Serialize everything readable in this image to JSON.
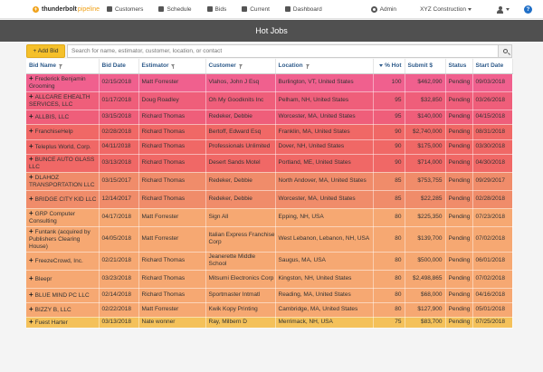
{
  "brand": {
    "name": "thunderbolt",
    "sub": "pipeline"
  },
  "nav": {
    "items": [
      {
        "label": "Customers",
        "icon": "people-icon"
      },
      {
        "label": "Schedule",
        "icon": "calendar-icon"
      },
      {
        "label": "Bids",
        "icon": "bids-icon"
      },
      {
        "label": "Current",
        "icon": "current-icon"
      },
      {
        "label": "Dashboard",
        "icon": "dashboard-icon"
      }
    ],
    "admin_label": "Admin",
    "company_label": "XYZ Construction",
    "help_label": "?"
  },
  "page_title": "Hot Jobs",
  "toolbar": {
    "add_label": "+ Add Bid",
    "search_placeholder": "Search for name, estimator, customer, location, or contact"
  },
  "columns": [
    "Bid Name",
    "Bid Date",
    "Estimator",
    "Customer",
    "Location",
    "% Hot",
    "Submit $",
    "Status",
    "Start Date"
  ],
  "colors": {
    "hot_100": "#f0608e",
    "hot_95": "#ef5e7a",
    "hot_90": "#f06866",
    "hot_85": "#f08c6a",
    "hot_80": "#f6a872",
    "hot_75": "#f4c15a"
  },
  "rows": [
    {
      "name": "Frederick Benjamin Grooming",
      "bid_date": "02/15/2018",
      "estimator": "Matt Forrester",
      "customer": "Vlahos, John J Esq",
      "location": "Burlington, VT, United States",
      "hot": "100",
      "submit": "$462,090",
      "status": "Pending",
      "start": "09/03/2018"
    },
    {
      "name": "ALLCARE EHEALTH SERVICES, LLC",
      "bid_date": "01/17/2018",
      "estimator": "Doug Roadley",
      "customer": "Oh My Goodknits Inc",
      "location": "Pelham, NH, United States",
      "hot": "95",
      "submit": "$32,850",
      "status": "Pending",
      "start": "03/26/2018"
    },
    {
      "name": "ALLBIS, LLC",
      "bid_date": "03/15/2018",
      "estimator": "Richard Thomas",
      "customer": "Redeker, Debbie",
      "location": "Worcester, MA, United States",
      "hot": "95",
      "submit": "$140,000",
      "status": "Pending",
      "start": "04/15/2018"
    },
    {
      "name": "FranchiseHelp",
      "bid_date": "02/28/2018",
      "estimator": "Richard Thomas",
      "customer": "Bertoff, Edward Esq",
      "location": "Franklin, MA, United States",
      "hot": "90",
      "submit": "$2,740,000",
      "status": "Pending",
      "start": "08/31/2018"
    },
    {
      "name": "Teleplus World, Corp.",
      "bid_date": "04/11/2018",
      "estimator": "Richard Thomas",
      "customer": "Professionals Unlimited",
      "location": "Dover, NH, United States",
      "hot": "90",
      "submit": "$175,000",
      "status": "Pending",
      "start": "03/30/2018"
    },
    {
      "name": "BUNCE AUTO GLASS LLC",
      "bid_date": "03/13/2018",
      "estimator": "Richard Thomas",
      "customer": "Desert Sands Motel",
      "location": "Portland, ME, United States",
      "hot": "90",
      "submit": "$714,000",
      "status": "Pending",
      "start": "04/30/2018"
    },
    {
      "name": "DLAHOZ TRANSPORTATION LLC",
      "bid_date": "03/15/2017",
      "estimator": "Richard Thomas",
      "customer": "Redeker, Debbie",
      "location": "North Andover, MA, United States",
      "hot": "85",
      "submit": "$753,755",
      "status": "Pending",
      "start": "09/29/2017"
    },
    {
      "name": "BRIDGE CITY KID LLC",
      "bid_date": "12/14/2017",
      "estimator": "Richard Thomas",
      "customer": "Redeker, Debbie",
      "location": "Worcester, MA, United States",
      "hot": "85",
      "submit": "$22,285",
      "status": "Pending",
      "start": "02/28/2018"
    },
    {
      "name": "GRP Computer Consulting",
      "bid_date": "04/17/2018",
      "estimator": "Matt Forrester",
      "customer": "Sign All",
      "location": "Epping, NH, USA",
      "hot": "80",
      "submit": "$225,350",
      "status": "Pending",
      "start": "07/23/2018"
    },
    {
      "name": "Funtank (acquired by Publishers Clearing House)",
      "bid_date": "04/05/2018",
      "estimator": "Matt Forrester",
      "customer": "Italian Express Franchise Corp",
      "location": "West Lebanon, Lebanon, NH, USA",
      "hot": "80",
      "submit": "$139,700",
      "status": "Pending",
      "start": "07/02/2018"
    },
    {
      "name": "FreezeCrowd, Inc.",
      "bid_date": "02/21/2018",
      "estimator": "Richard Thomas",
      "customer": "Jeanerette Middle School",
      "location": "Saugus, MA, USA",
      "hot": "80",
      "submit": "$500,000",
      "status": "Pending",
      "start": "06/01/2018"
    },
    {
      "name": "Bleepr",
      "bid_date": "03/23/2018",
      "estimator": "Richard Thomas",
      "customer": "Mitsumi Electronics Corp",
      "location": "Kingston, NH, United States",
      "hot": "80",
      "submit": "$2,498,865",
      "status": "Pending",
      "start": "07/02/2018"
    },
    {
      "name": "BLUE MIND PC LLC",
      "bid_date": "02/14/2018",
      "estimator": "Richard Thomas",
      "customer": "Sportmaster Intmatl",
      "location": "Reading, MA, United States",
      "hot": "80",
      "submit": "$68,000",
      "status": "Pending",
      "start": "04/16/2018"
    },
    {
      "name": "BIZZY B, LLC",
      "bid_date": "02/22/2018",
      "estimator": "Matt Forrester",
      "customer": "Kwik Kopy Printing",
      "location": "Cambridge, MA, United States",
      "hot": "80",
      "submit": "$127,900",
      "status": "Pending",
      "start": "05/01/2018"
    },
    {
      "name": "Fuest Harter",
      "bid_date": "03/13/2018",
      "estimator": "Nate wonner",
      "customer": "Ray, Milbern D",
      "location": "Merrimack, NH, USA",
      "hot": "75",
      "submit": "$83,700",
      "status": "Pending",
      "start": "07/25/2018"
    }
  ]
}
